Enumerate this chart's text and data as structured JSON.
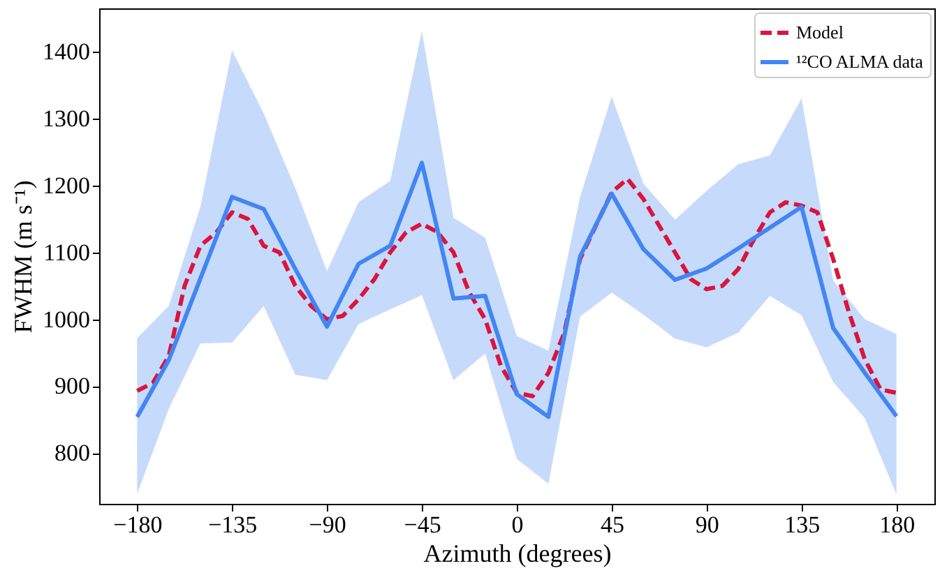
{
  "chart_data": {
    "type": "line",
    "xlabel": "Azimuth (degrees)",
    "ylabel": "FWHM (m s⁻¹)",
    "xlim": [
      -198,
      198
    ],
    "xticks": [
      -180,
      -135,
      -90,
      -45,
      0,
      45,
      90,
      135,
      180
    ],
    "ylim": [
      724,
      1465
    ],
    "yticks": [
      800,
      900,
      1000,
      1100,
      1200,
      1300,
      1400
    ],
    "grid": false,
    "legend": "top right",
    "marker": "none",
    "series": [
      {
        "name": "Model",
        "color": "#dc143c",
        "line_style": "dashed",
        "x": [
          -180,
          -172.5,
          -165,
          -157.5,
          -150,
          -142.5,
          -135,
          -127.5,
          -120,
          -112.5,
          -105,
          -97.5,
          -90,
          -82.5,
          -75,
          -67.5,
          -60,
          -52.5,
          -45,
          -37.5,
          -30,
          -22.5,
          -15,
          -7.5,
          0,
          7.5,
          15,
          22.5,
          30,
          37.5,
          45,
          52.5,
          60,
          67.5,
          75,
          82.5,
          90,
          97.5,
          105,
          112.5,
          120,
          127.5,
          135,
          142.5,
          150,
          157.5,
          165,
          172.5,
          180
        ],
        "values": [
          893,
          905,
          945,
          1050,
          1110,
          1130,
          1160,
          1150,
          1110,
          1100,
          1050,
          1020,
          1000,
          1005,
          1030,
          1060,
          1100,
          1130,
          1143,
          1130,
          1100,
          1040,
          1000,
          930,
          890,
          885,
          920,
          980,
          1090,
          1140,
          1190,
          1210,
          1180,
          1140,
          1100,
          1060,
          1045,
          1050,
          1075,
          1120,
          1160,
          1175,
          1170,
          1160,
          1090,
          1010,
          940,
          895,
          890
        ]
      },
      {
        "name": "¹²CO ALMA data",
        "color": "#4285f4",
        "line_style": "solid",
        "x": [
          -180,
          -165,
          -150,
          -135,
          -120,
          -105,
          -90,
          -75,
          -60,
          -45,
          -30,
          -15,
          0,
          15,
          30,
          45,
          60,
          75,
          90,
          105,
          120,
          135,
          150,
          165,
          180
        ],
        "values": [
          854,
          939,
          1061,
          1183,
          1165,
          1075,
          989,
          1083,
          1110,
          1234,
          1031,
          1035,
          888,
          854,
          1094,
          1188,
          1105,
          1059,
          1076,
          1106,
          1137,
          1168,
          987,
          920,
          855
        ],
        "lower": [
          739,
          866,
          964,
          965,
          1020,
          917,
          909,
          993,
          1015,
          1036,
          909,
          949,
          791,
          754,
          1004,
          1040,
          1007,
          971,
          958,
          980,
          1035,
          1006,
          906,
          852,
          738
        ],
        "upper": [
          972,
          1020,
          1168,
          1402,
          1308,
          1196,
          1072,
          1175,
          1207,
          1431,
          1152,
          1122,
          975,
          953,
          1183,
          1333,
          1203,
          1149,
          1192,
          1232,
          1245,
          1330,
          1058,
          1000,
          978
        ]
      }
    ]
  }
}
